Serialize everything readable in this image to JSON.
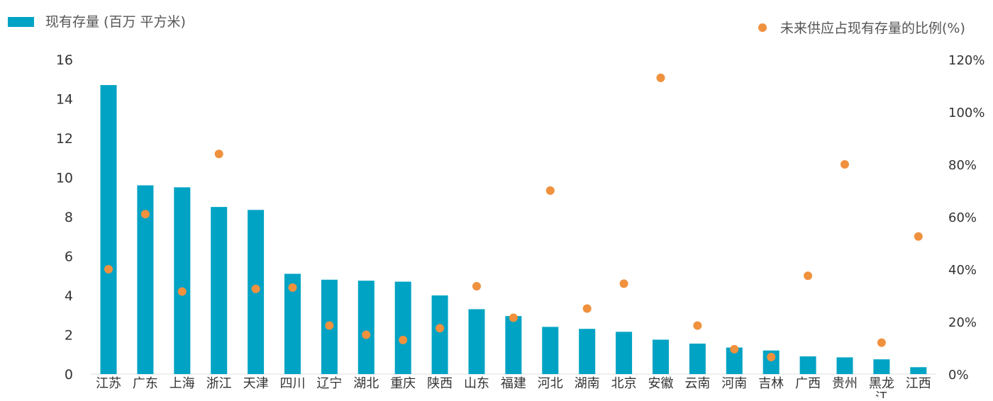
{
  "chart_data": {
    "type": "bar",
    "categories": [
      "江苏",
      "广东",
      "上海",
      "浙江",
      "天津",
      "四川",
      "辽宁",
      "湖北",
      "重庆",
      "陕西",
      "山东",
      "福建",
      "河北",
      "湖南",
      "北京",
      "安徽",
      "云南",
      "河南",
      "吉林",
      "广西",
      "贵州",
      "黑龙江",
      "江西"
    ],
    "series": [
      {
        "name": "现有存量 (百万  平方米)",
        "type": "bar",
        "axis": "left",
        "color": "#00a3c4",
        "values": [
          14.7,
          9.6,
          9.5,
          8.5,
          8.35,
          5.1,
          4.8,
          4.75,
          4.7,
          4.0,
          3.3,
          2.95,
          2.4,
          2.3,
          2.15,
          1.75,
          1.55,
          1.35,
          1.2,
          0.9,
          0.85,
          0.75,
          0.35
        ]
      },
      {
        "name": "未来供应占现有存量的比例(%)",
        "type": "scatter",
        "axis": "right",
        "color": "#f0913e",
        "values": [
          40,
          61,
          31.5,
          84,
          32.5,
          33,
          18.5,
          15,
          13,
          17.5,
          33.5,
          21.5,
          70,
          25,
          34.5,
          113,
          18.5,
          9.5,
          6.5,
          37.5,
          80,
          12,
          52.5
        ]
      }
    ],
    "y_left": {
      "min": 0,
      "max": 16,
      "ticks": [
        "0",
        "2",
        "4",
        "6",
        "8",
        "10",
        "12",
        "14",
        "16"
      ]
    },
    "y_right": {
      "min": 0,
      "max": 120,
      "ticks": [
        "0%",
        "20%",
        "40%",
        "60%",
        "80%",
        "100%",
        "120%"
      ]
    },
    "grid": false,
    "legend": {
      "bar_label": "现有存量 (百万  平方米)",
      "dot_label": "未来供应占现有存量的比例(%)",
      "placement": "top"
    }
  }
}
